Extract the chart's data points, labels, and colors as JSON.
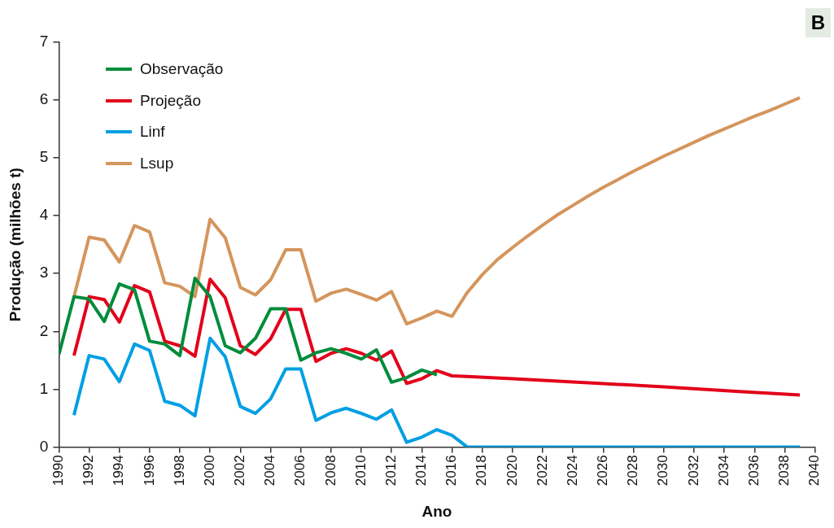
{
  "chart_data": {
    "type": "line",
    "xlabel": "Ano",
    "ylabel": "Produção (milhões t)",
    "annotations": [
      "B"
    ],
    "xlim": [
      1990,
      2040
    ],
    "xticks": [
      1990,
      1992,
      1994,
      1996,
      1998,
      2000,
      2002,
      2004,
      2006,
      2008,
      2010,
      2012,
      2014,
      2016,
      2018,
      2020,
      2022,
      2024,
      2026,
      2028,
      2030,
      2032,
      2034,
      2036,
      2038,
      2040
    ],
    "ylim": [
      0,
      7
    ],
    "yticks": [
      0,
      1,
      2,
      3,
      4,
      5,
      6,
      7
    ],
    "grid": false,
    "legend": "top left",
    "marker": "none",
    "line_style": "solid",
    "series": [
      {
        "name": "Observação",
        "color": "#008c3a",
        "x": [
          1990,
          1991,
          1992,
          1993,
          1994,
          1995,
          1996,
          1997,
          1998,
          1999,
          2000,
          2001,
          2002,
          2003,
          2004,
          2005,
          2006,
          2007,
          2008,
          2009,
          2010,
          2011,
          2012,
          2013,
          2014,
          2015
        ],
        "values": [
          1.6,
          2.6,
          2.56,
          2.17,
          2.82,
          2.72,
          1.83,
          1.78,
          1.58,
          2.92,
          2.6,
          1.75,
          1.63,
          1.88,
          2.39,
          2.39,
          1.5,
          1.63,
          1.7,
          1.62,
          1.52,
          1.68,
          1.12,
          1.2,
          1.33,
          1.25
        ]
      },
      {
        "name": "Projeção",
        "color": "#e2001a",
        "x": [
          1991,
          1992,
          1993,
          1994,
          1995,
          1996,
          1997,
          1998,
          1999,
          2000,
          2001,
          2002,
          2003,
          2004,
          2005,
          2006,
          2007,
          2008,
          2009,
          2010,
          2011,
          2012,
          2013,
          2014,
          2015,
          2016,
          2017,
          2020,
          2025,
          2030,
          2035,
          2039
        ],
        "values": [
          1.58,
          2.6,
          2.55,
          2.16,
          2.79,
          2.68,
          1.83,
          1.75,
          1.57,
          2.9,
          2.58,
          1.75,
          1.6,
          1.87,
          2.38,
          2.38,
          1.48,
          1.62,
          1.7,
          1.62,
          1.5,
          1.66,
          1.1,
          1.18,
          1.32,
          1.23,
          1.22,
          1.18,
          1.11,
          1.04,
          0.96,
          0.9
        ]
      },
      {
        "name": "Linf",
        "color": "#009fe3",
        "x": [
          1991,
          1992,
          1993,
          1994,
          1995,
          1996,
          1997,
          1998,
          1999,
          2000,
          2001,
          2002,
          2003,
          2004,
          2005,
          2006,
          2007,
          2008,
          2009,
          2010,
          2011,
          2012,
          2013,
          2014,
          2015,
          2016,
          2017,
          2039
        ],
        "values": [
          0.55,
          1.58,
          1.52,
          1.13,
          1.78,
          1.67,
          0.79,
          0.72,
          0.54,
          1.88,
          1.56,
          0.7,
          0.58,
          0.83,
          1.35,
          1.35,
          0.46,
          0.59,
          0.67,
          0.58,
          0.48,
          0.64,
          0.08,
          0.17,
          0.3,
          0.2,
          0,
          0
        ]
      },
      {
        "name": "Lsup",
        "color": "#d4955c",
        "x": [
          1991,
          1992,
          1993,
          1994,
          1995,
          1996,
          1997,
          1998,
          1999,
          2000,
          2001,
          2002,
          2003,
          2004,
          2005,
          2006,
          2007,
          2008,
          2009,
          2010,
          2011,
          2012,
          2013,
          2014,
          2015,
          2016,
          2017,
          2018,
          2019,
          2020,
          2021,
          2022,
          2023,
          2024,
          2025,
          2026,
          2027,
          2028,
          2029,
          2030,
          2031,
          2032,
          2033,
          2034,
          2035,
          2036,
          2037,
          2038,
          2039
        ],
        "values": [
          2.6,
          3.63,
          3.58,
          3.2,
          3.83,
          3.72,
          2.84,
          2.78,
          2.6,
          3.94,
          3.62,
          2.76,
          2.63,
          2.89,
          3.41,
          3.41,
          2.52,
          2.66,
          2.73,
          2.64,
          2.54,
          2.69,
          2.13,
          2.23,
          2.35,
          2.26,
          2.67,
          2.98,
          3.24,
          3.45,
          3.65,
          3.84,
          4.02,
          4.18,
          4.34,
          4.49,
          4.63,
          4.77,
          4.9,
          5.03,
          5.15,
          5.27,
          5.39,
          5.5,
          5.61,
          5.72,
          5.82,
          5.93,
          6.04
        ]
      }
    ]
  }
}
